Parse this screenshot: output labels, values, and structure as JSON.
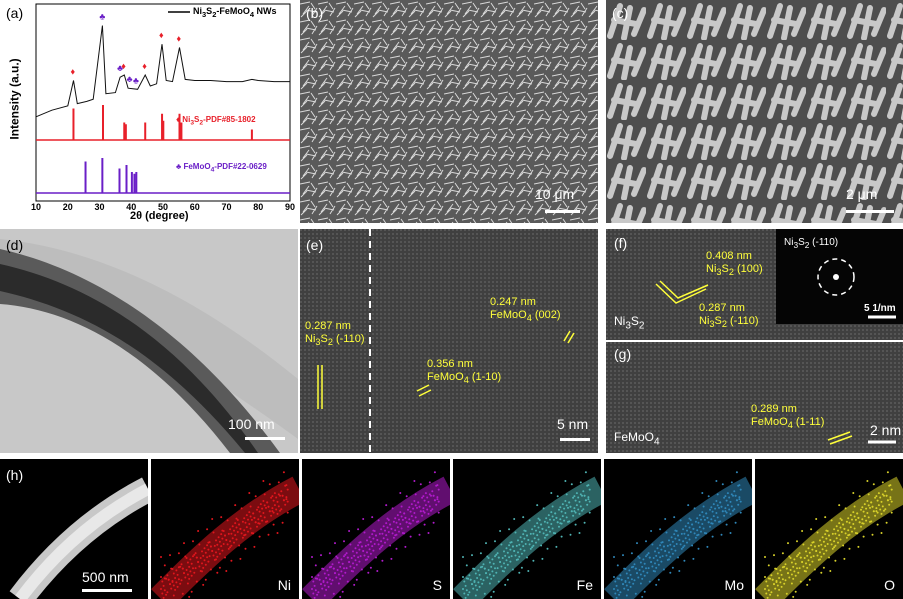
{
  "figure": {
    "panel_a": {
      "label": "(a)",
      "legend": "Ni3S2-FeMoO4 NWs",
      "ref1": "Ni3S2-PDF#85-1802",
      "ref2": "FeMoO4-PDF#22-0629",
      "ylabel": "Intensity (a.u.)",
      "xlabel": "2θ (degree)",
      "ticks": [
        "10",
        "20",
        "30",
        "40",
        "50",
        "60",
        "70",
        "80",
        "90"
      ],
      "colors": {
        "data": "#111111",
        "ni3s2": "#e8202a",
        "femoo4": "#6a1fc7"
      }
    },
    "panel_b": {
      "label": "(b)",
      "scale": "10 μm"
    },
    "panel_c": {
      "label": "(c)",
      "scale": "2 μm"
    },
    "panel_d": {
      "label": "(d)",
      "scale": "100 nm"
    },
    "panel_e": {
      "label": "(e)",
      "scale": "5 nm",
      "ann1": "0.287 nm",
      "ann1b": "Ni3S2 (-110)",
      "ann2": "0.247 nm",
      "ann2b": "FeMoO4 (002)",
      "ann3": "0.356 nm",
      "ann3b": "FeMoO4 (1-10)"
    },
    "panel_f": {
      "label": "(f)",
      "scale": "5 1/nm",
      "ann1": "0.408 nm",
      "ann1b": "Ni3S2 (100)",
      "ann2": "0.287 nm",
      "ann2b": "Ni3S2 (-110)",
      "phase": "Ni3S2",
      "saed": "Ni3S2 (-110)"
    },
    "panel_g": {
      "label": "(g)",
      "scale": "2 nm",
      "ann1": "0.289 nm",
      "ann1b": "FeMoO4 (1-11)",
      "phase": "FeMoO4"
    },
    "panel_h": {
      "label": "(h)",
      "scale": "500 nm",
      "elements": [
        "Ni",
        "S",
        "Fe",
        "Mo",
        "O"
      ],
      "colors": [
        "#e0161d",
        "#b01acb",
        "#4fb3b3",
        "#2f86b8",
        "#d8d12a"
      ]
    }
  },
  "chart_data": {
    "type": "line",
    "xlabel": "2θ (degree)",
    "ylabel": "Intensity (a.u.)",
    "xlim": [
      10,
      90
    ],
    "series": [
      {
        "name": "Ni3S2-FeMoO4 NWs",
        "x": [
          10,
          15,
          20,
          21.8,
          23,
          26,
          28,
          30.9,
          32,
          35,
          36.5,
          37.8,
          39,
          42,
          44.4,
          46,
          48,
          49.7,
          51,
          53,
          55.2,
          57,
          60,
          65,
          70,
          75,
          78,
          80,
          85,
          90
        ],
        "values": [
          0.12,
          0.18,
          0.22,
          0.45,
          0.24,
          0.26,
          0.28,
          0.95,
          0.33,
          0.34,
          0.48,
          0.5,
          0.38,
          0.37,
          0.5,
          0.4,
          0.42,
          0.78,
          0.45,
          0.44,
          0.75,
          0.46,
          0.45,
          0.45,
          0.44,
          0.44,
          0.46,
          0.45,
          0.44,
          0.44
        ]
      },
      {
        "name": "Ni3S2-PDF#85-1802",
        "x": [
          21.8,
          31.1,
          37.8,
          38.3,
          44.4,
          49.7,
          50.1,
          55.2,
          55.8,
          78.0
        ],
        "values": [
          0.9,
          1.0,
          0.5,
          0.45,
          0.5,
          0.75,
          0.55,
          0.75,
          0.5,
          0.3
        ]
      },
      {
        "name": "FeMoO4-PDF#22-0629",
        "x": [
          25.6,
          30.9,
          36.3,
          38.5,
          40.2,
          41.0,
          41.6
        ],
        "values": [
          0.9,
          1.0,
          0.7,
          0.8,
          0.6,
          0.55,
          0.6
        ]
      }
    ]
  }
}
